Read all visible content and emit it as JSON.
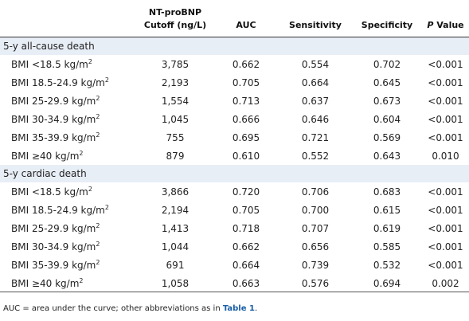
{
  "headers": {
    "cutoff_line1": "NT-proBNP",
    "cutoff_line2": "Cutoff (ng/L)",
    "auc": "AUC",
    "sensitivity": "Sensitivity",
    "specificity": "Specificity",
    "p_letter": "P",
    "p_word": " Value"
  },
  "sections": [
    {
      "title": "5-y all-cause death",
      "rows": [
        {
          "label": "BMI <18.5 kg/m",
          "cutoff": "3,785",
          "auc": "0.662",
          "sens": "0.554",
          "spec": "0.702",
          "p": "<0.001"
        },
        {
          "label": "BMI 18.5-24.9 kg/m",
          "cutoff": "2,193",
          "auc": "0.705",
          "sens": "0.664",
          "spec": "0.645",
          "p": "<0.001"
        },
        {
          "label": "BMI 25-29.9 kg/m",
          "cutoff": "1,554",
          "auc": "0.713",
          "sens": "0.637",
          "spec": "0.673",
          "p": "<0.001"
        },
        {
          "label": "BMI 30-34.9 kg/m",
          "cutoff": "1,045",
          "auc": "0.666",
          "sens": "0.646",
          "spec": "0.604",
          "p": "<0.001"
        },
        {
          "label": "BMI 35-39.9 kg/m",
          "cutoff": "755",
          "auc": "0.695",
          "sens": "0.721",
          "spec": "0.569",
          "p": "<0.001"
        },
        {
          "label": "BMI ≥40 kg/m",
          "cutoff": "879",
          "auc": "0.610",
          "sens": "0.552",
          "spec": "0.643",
          "p": "0.010"
        }
      ]
    },
    {
      "title": "5-y cardiac death",
      "rows": [
        {
          "label": "BMI <18.5 kg/m",
          "cutoff": "3,866",
          "auc": "0.720",
          "sens": "0.706",
          "spec": "0.683",
          "p": "<0.001"
        },
        {
          "label": "BMI 18.5-24.9 kg/m",
          "cutoff": "2,194",
          "auc": "0.705",
          "sens": "0.700",
          "spec": "0.615",
          "p": "<0.001"
        },
        {
          "label": "BMI 25-29.9 kg/m",
          "cutoff": "1,413",
          "auc": "0.718",
          "sens": "0.707",
          "spec": "0.619",
          "p": "<0.001"
        },
        {
          "label": "BMI 30-34.9 kg/m",
          "cutoff": "1,044",
          "auc": "0.662",
          "sens": "0.656",
          "spec": "0.585",
          "p": "<0.001"
        },
        {
          "label": "BMI 35-39.9 kg/m",
          "cutoff": "691",
          "auc": "0.664",
          "sens": "0.739",
          "spec": "0.532",
          "p": "<0.001"
        },
        {
          "label": "BMI ≥40 kg/m",
          "cutoff": "1,058",
          "auc": "0.663",
          "sens": "0.576",
          "spec": "0.694",
          "p": "0.002"
        }
      ]
    }
  ],
  "unit_superscript": "2",
  "footnote": {
    "text": "AUC = area under the curve; other abbreviations as in ",
    "link": "Table 1",
    "end": "."
  },
  "colors": {
    "section_band": "#e8eef6",
    "link": "#1a5fa8"
  }
}
